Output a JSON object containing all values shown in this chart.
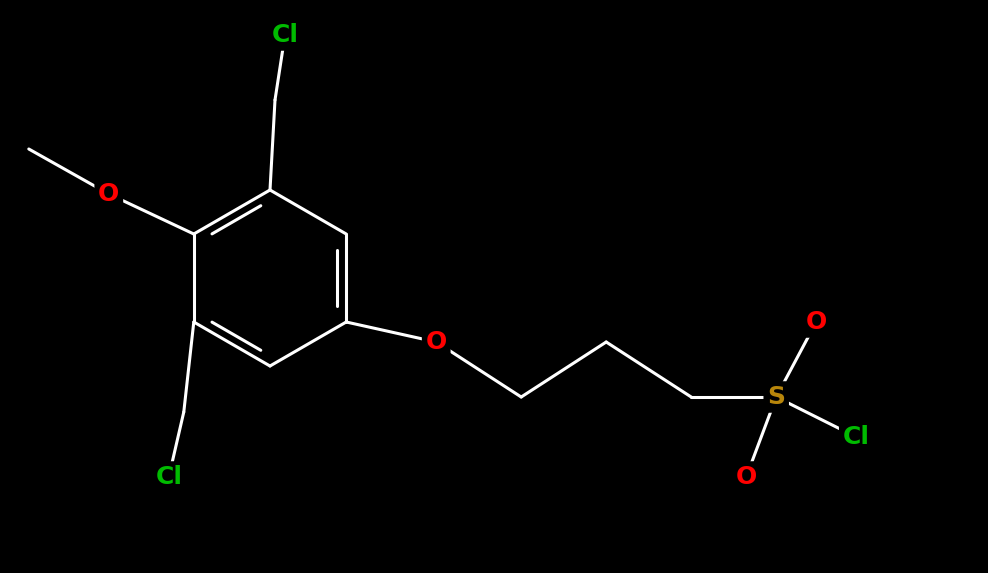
{
  "background_color": "#000000",
  "bond_color": "#ffffff",
  "atom_colors": {
    "O": "#ff0000",
    "S": "#b8860b",
    "Cl": "#00bb00"
  },
  "bond_width": 2.2,
  "font_size": 18
}
